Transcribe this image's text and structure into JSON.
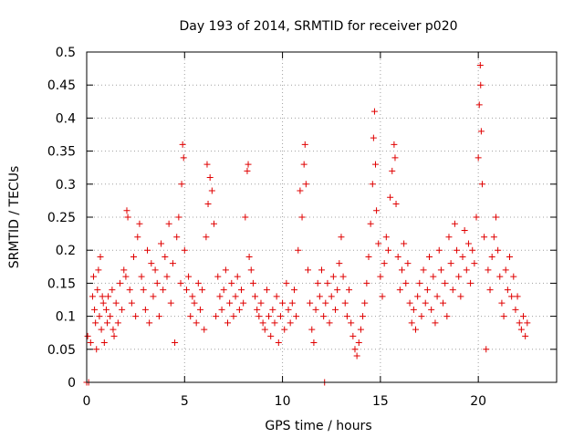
{
  "chart_data": {
    "type": "scatter",
    "title": "Day 193 of 2014, SRMTID for receiver p020",
    "xlabel": "GPS time / hours",
    "ylabel": "SRMTID / TECUs",
    "xlim": [
      0,
      24
    ],
    "ylim": [
      0,
      0.5
    ],
    "xticks": [
      0,
      5,
      10,
      15,
      20
    ],
    "xtick_labels": [
      "0",
      "5",
      "10",
      "15",
      "20"
    ],
    "yticks": [
      0,
      0.05,
      0.1,
      0.15,
      0.2,
      0.25,
      0.3,
      0.35,
      0.4,
      0.45,
      0.5
    ],
    "ytick_labels": [
      "0",
      "0.05",
      "0.1",
      "0.15",
      "0.2",
      "0.25",
      "0.3",
      "0.35",
      "0.4",
      "0.45",
      "0.5"
    ],
    "grid": true,
    "marker": "+",
    "color": "#e00000",
    "series": [
      {
        "name": "SRMTID",
        "points": [
          [
            0.0,
            0.0
          ],
          [
            0.1,
            0.0
          ],
          [
            0.05,
            0.07
          ],
          [
            0.2,
            0.06
          ],
          [
            0.3,
            0.13
          ],
          [
            0.35,
            0.16
          ],
          [
            0.4,
            0.11
          ],
          [
            0.45,
            0.09
          ],
          [
            0.5,
            0.05
          ],
          [
            0.55,
            0.14
          ],
          [
            0.6,
            0.17
          ],
          [
            0.65,
            0.1
          ],
          [
            0.7,
            0.19
          ],
          [
            0.75,
            0.08
          ],
          [
            0.8,
            0.13
          ],
          [
            0.85,
            0.12
          ],
          [
            0.9,
            0.06
          ],
          [
            1.0,
            0.11
          ],
          [
            1.05,
            0.09
          ],
          [
            1.1,
            0.13
          ],
          [
            1.2,
            0.1
          ],
          [
            1.3,
            0.14
          ],
          [
            1.35,
            0.08
          ],
          [
            1.4,
            0.07
          ],
          [
            1.5,
            0.12
          ],
          [
            1.6,
            0.09
          ],
          [
            1.7,
            0.15
          ],
          [
            1.8,
            0.11
          ],
          [
            1.9,
            0.17
          ],
          [
            2.0,
            0.16
          ],
          [
            2.05,
            0.26
          ],
          [
            2.1,
            0.25
          ],
          [
            2.2,
            0.14
          ],
          [
            2.3,
            0.12
          ],
          [
            2.4,
            0.19
          ],
          [
            2.5,
            0.1
          ],
          [
            2.6,
            0.22
          ],
          [
            2.7,
            0.24
          ],
          [
            2.8,
            0.16
          ],
          [
            2.9,
            0.14
          ],
          [
            3.0,
            0.11
          ],
          [
            3.1,
            0.2
          ],
          [
            3.2,
            0.09
          ],
          [
            3.3,
            0.18
          ],
          [
            3.4,
            0.13
          ],
          [
            3.5,
            0.17
          ],
          [
            3.6,
            0.15
          ],
          [
            3.7,
            0.1
          ],
          [
            3.8,
            0.21
          ],
          [
            3.9,
            0.14
          ],
          [
            4.0,
            0.19
          ],
          [
            4.1,
            0.16
          ],
          [
            4.2,
            0.24
          ],
          [
            4.3,
            0.12
          ],
          [
            4.4,
            0.18
          ],
          [
            4.5,
            0.06
          ],
          [
            4.6,
            0.22
          ],
          [
            4.7,
            0.25
          ],
          [
            4.8,
            0.15
          ],
          [
            4.85,
            0.3
          ],
          [
            4.9,
            0.36
          ],
          [
            4.95,
            0.34
          ],
          [
            5.0,
            0.2
          ],
          [
            5.1,
            0.14
          ],
          [
            5.2,
            0.16
          ],
          [
            5.3,
            0.1
          ],
          [
            5.4,
            0.13
          ],
          [
            5.5,
            0.12
          ],
          [
            5.6,
            0.09
          ],
          [
            5.7,
            0.15
          ],
          [
            5.8,
            0.11
          ],
          [
            5.9,
            0.14
          ],
          [
            6.0,
            0.08
          ],
          [
            6.1,
            0.22
          ],
          [
            6.15,
            0.33
          ],
          [
            6.2,
            0.27
          ],
          [
            6.3,
            0.31
          ],
          [
            6.4,
            0.29
          ],
          [
            6.5,
            0.24
          ],
          [
            6.6,
            0.1
          ],
          [
            6.7,
            0.16
          ],
          [
            6.8,
            0.13
          ],
          [
            6.9,
            0.11
          ],
          [
            7.0,
            0.14
          ],
          [
            7.1,
            0.17
          ],
          [
            7.2,
            0.09
          ],
          [
            7.3,
            0.12
          ],
          [
            7.4,
            0.15
          ],
          [
            7.5,
            0.1
          ],
          [
            7.6,
            0.13
          ],
          [
            7.7,
            0.16
          ],
          [
            7.8,
            0.11
          ],
          [
            7.9,
            0.14
          ],
          [
            8.0,
            0.12
          ],
          [
            8.1,
            0.25
          ],
          [
            8.2,
            0.32
          ],
          [
            8.25,
            0.33
          ],
          [
            8.3,
            0.19
          ],
          [
            8.4,
            0.17
          ],
          [
            8.5,
            0.15
          ],
          [
            8.6,
            0.13
          ],
          [
            8.7,
            0.11
          ],
          [
            8.8,
            0.1
          ],
          [
            8.9,
            0.12
          ],
          [
            9.0,
            0.09
          ],
          [
            9.1,
            0.08
          ],
          [
            9.2,
            0.14
          ],
          [
            9.3,
            0.1
          ],
          [
            9.4,
            0.07
          ],
          [
            9.5,
            0.11
          ],
          [
            9.6,
            0.09
          ],
          [
            9.7,
            0.13
          ],
          [
            9.8,
            0.06
          ],
          [
            9.9,
            0.1
          ],
          [
            10.0,
            0.12
          ],
          [
            10.1,
            0.08
          ],
          [
            10.2,
            0.15
          ],
          [
            10.3,
            0.11
          ],
          [
            10.4,
            0.09
          ],
          [
            10.5,
            0.12
          ],
          [
            10.6,
            0.14
          ],
          [
            10.7,
            0.1
          ],
          [
            10.8,
            0.2
          ],
          [
            10.9,
            0.29
          ],
          [
            11.0,
            0.25
          ],
          [
            11.1,
            0.33
          ],
          [
            11.15,
            0.36
          ],
          [
            11.2,
            0.3
          ],
          [
            11.3,
            0.17
          ],
          [
            11.4,
            0.12
          ],
          [
            11.5,
            0.08
          ],
          [
            11.6,
            0.06
          ],
          [
            11.7,
            0.11
          ],
          [
            11.8,
            0.15
          ],
          [
            11.9,
            0.13
          ],
          [
            12.0,
            0.17
          ],
          [
            12.1,
            0.1
          ],
          [
            12.15,
            0.0
          ],
          [
            12.2,
            0.12
          ],
          [
            12.3,
            0.15
          ],
          [
            12.4,
            0.09
          ],
          [
            12.5,
            0.13
          ],
          [
            12.6,
            0.16
          ],
          [
            12.7,
            0.11
          ],
          [
            12.8,
            0.14
          ],
          [
            12.9,
            0.18
          ],
          [
            13.0,
            0.22
          ],
          [
            13.1,
            0.16
          ],
          [
            13.2,
            0.12
          ],
          [
            13.3,
            0.1
          ],
          [
            13.4,
            0.14
          ],
          [
            13.5,
            0.09
          ],
          [
            13.6,
            0.07
          ],
          [
            13.7,
            0.05
          ],
          [
            13.8,
            0.04
          ],
          [
            13.9,
            0.06
          ],
          [
            14.0,
            0.08
          ],
          [
            14.1,
            0.1
          ],
          [
            14.2,
            0.12
          ],
          [
            14.3,
            0.15
          ],
          [
            14.4,
            0.19
          ],
          [
            14.5,
            0.24
          ],
          [
            14.6,
            0.3
          ],
          [
            14.65,
            0.37
          ],
          [
            14.7,
            0.41
          ],
          [
            14.75,
            0.33
          ],
          [
            14.8,
            0.26
          ],
          [
            14.9,
            0.21
          ],
          [
            15.0,
            0.16
          ],
          [
            15.1,
            0.13
          ],
          [
            15.2,
            0.18
          ],
          [
            15.3,
            0.22
          ],
          [
            15.4,
            0.2
          ],
          [
            15.5,
            0.28
          ],
          [
            15.6,
            0.32
          ],
          [
            15.7,
            0.36
          ],
          [
            15.75,
            0.34
          ],
          [
            15.8,
            0.27
          ],
          [
            15.9,
            0.19
          ],
          [
            16.0,
            0.14
          ],
          [
            16.1,
            0.17
          ],
          [
            16.2,
            0.21
          ],
          [
            16.3,
            0.15
          ],
          [
            16.4,
            0.18
          ],
          [
            16.5,
            0.12
          ],
          [
            16.6,
            0.09
          ],
          [
            16.7,
            0.11
          ],
          [
            16.8,
            0.08
          ],
          [
            16.9,
            0.13
          ],
          [
            17.0,
            0.15
          ],
          [
            17.1,
            0.1
          ],
          [
            17.2,
            0.17
          ],
          [
            17.3,
            0.12
          ],
          [
            17.4,
            0.14
          ],
          [
            17.5,
            0.19
          ],
          [
            17.6,
            0.11
          ],
          [
            17.7,
            0.16
          ],
          [
            17.8,
            0.09
          ],
          [
            17.9,
            0.13
          ],
          [
            18.0,
            0.2
          ],
          [
            18.1,
            0.17
          ],
          [
            18.2,
            0.12
          ],
          [
            18.3,
            0.15
          ],
          [
            18.4,
            0.1
          ],
          [
            18.5,
            0.22
          ],
          [
            18.6,
            0.18
          ],
          [
            18.7,
            0.14
          ],
          [
            18.8,
            0.24
          ],
          [
            18.9,
            0.2
          ],
          [
            19.0,
            0.16
          ],
          [
            19.1,
            0.13
          ],
          [
            19.2,
            0.19
          ],
          [
            19.3,
            0.23
          ],
          [
            19.4,
            0.17
          ],
          [
            19.5,
            0.21
          ],
          [
            19.6,
            0.15
          ],
          [
            19.7,
            0.2
          ],
          [
            19.8,
            0.18
          ],
          [
            19.9,
            0.25
          ],
          [
            20.0,
            0.34
          ],
          [
            20.05,
            0.42
          ],
          [
            20.1,
            0.48
          ],
          [
            20.12,
            0.45
          ],
          [
            20.15,
            0.38
          ],
          [
            20.2,
            0.3
          ],
          [
            20.3,
            0.22
          ],
          [
            20.4,
            0.05
          ],
          [
            20.5,
            0.17
          ],
          [
            20.6,
            0.14
          ],
          [
            20.7,
            0.19
          ],
          [
            20.8,
            0.22
          ],
          [
            20.9,
            0.25
          ],
          [
            21.0,
            0.2
          ],
          [
            21.1,
            0.16
          ],
          [
            21.2,
            0.12
          ],
          [
            21.3,
            0.1
          ],
          [
            21.4,
            0.17
          ],
          [
            21.5,
            0.14
          ],
          [
            21.6,
            0.19
          ],
          [
            21.7,
            0.13
          ],
          [
            21.8,
            0.16
          ],
          [
            21.9,
            0.11
          ],
          [
            22.0,
            0.13
          ],
          [
            22.1,
            0.09
          ],
          [
            22.2,
            0.08
          ],
          [
            22.3,
            0.1
          ],
          [
            22.4,
            0.07
          ],
          [
            22.5,
            0.09
          ]
        ]
      }
    ]
  }
}
